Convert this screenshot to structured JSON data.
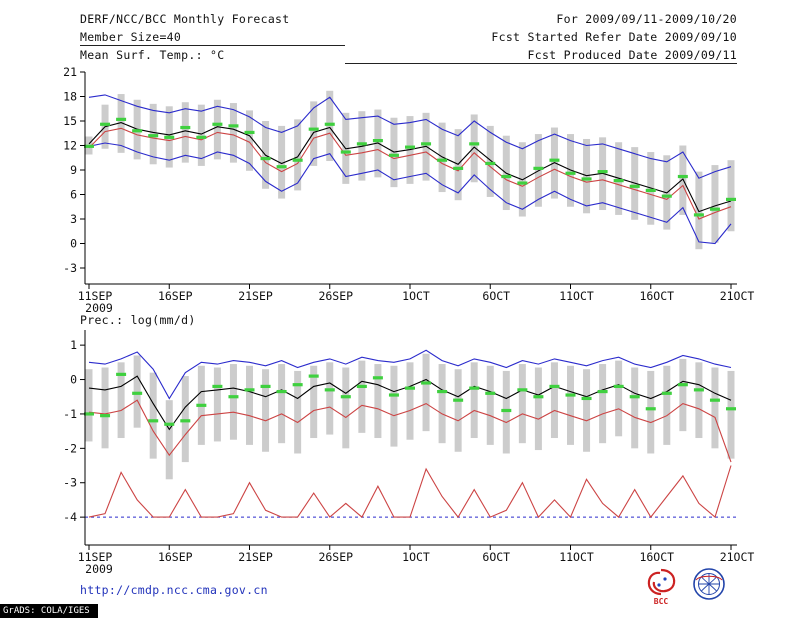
{
  "header": {
    "title": "DERF/NCC/BCC Monthly Forecast",
    "forecast_period": "For 2009/09/11-2009/10/20",
    "member_size": "Member Size=40",
    "refer_date_line": "Fcst Started Refer Date 2009/09/10",
    "produced_date_line": "Fcst Produced Date 2009/09/11"
  },
  "footer": {
    "url": "http://cmdp.ncc.cma.gov.cn",
    "grads_credit": "GrADS: COLA/IGES",
    "bcc_logo_label": "BCC"
  },
  "colors": {
    "envelope": "#2b2bcc",
    "mean": "#000000",
    "control": "#cc4444",
    "observation": "#3fd03f",
    "spread_bar": "#cccccc",
    "url": "#2233bb"
  },
  "chart_data": [
    {
      "id": "surface-temperature",
      "type": "line",
      "title": "Mean Surf. Temp.: °C",
      "ylabel": "°C",
      "ylim": [
        -3,
        21
      ],
      "yticks": [
        -3,
        0,
        3,
        6,
        9,
        12,
        15,
        18,
        21
      ],
      "n": 41,
      "xtick_labels": [
        "11SEP",
        "16SEP",
        "21SEP",
        "26SEP",
        "1OCT",
        "6OCT",
        "11OCT",
        "16OCT",
        "21OCT"
      ],
      "xtick_index": [
        0,
        5,
        10,
        15,
        20,
        25,
        30,
        35,
        40
      ],
      "x_sub_label": "2009",
      "legend_hint": "gray bars: ensemble spread; blue: max/min; black: ensemble mean; red: control; green marks: observation",
      "bars": {
        "name": "ensemble-spread",
        "color": "#cccccc",
        "lo": [
          10.9,
          11.6,
          11.1,
          10.3,
          9.7,
          9.3,
          9.9,
          9.5,
          10.3,
          9.9,
          8.9,
          6.7,
          5.5,
          6.5,
          9.5,
          10.1,
          7.3,
          7.7,
          8.1,
          6.9,
          7.3,
          7.7,
          6.3,
          5.3,
          7.5,
          5.7,
          4.1,
          3.3,
          4.5,
          5.5,
          4.5,
          3.7,
          4.1,
          3.5,
          2.9,
          2.3,
          1.7,
          3.5,
          -0.7,
          0.1,
          1.5
        ],
        "hi": [
          13.1,
          17.0,
          18.3,
          17.6,
          17.1,
          16.8,
          17.3,
          17.0,
          17.6,
          17.2,
          16.3,
          15.0,
          14.4,
          15.2,
          17.4,
          18.7,
          16.0,
          16.2,
          16.4,
          15.4,
          15.6,
          16.0,
          14.8,
          14.0,
          15.8,
          14.4,
          13.2,
          12.4,
          13.4,
          14.2,
          13.4,
          12.8,
          13.0,
          12.4,
          11.8,
          11.2,
          10.8,
          12.0,
          8.8,
          9.6,
          10.2
        ]
      },
      "series": [
        {
          "name": "ensemble-max",
          "color": "#2b2bcc",
          "values": [
            17.9,
            18.2,
            17.5,
            16.8,
            16.3,
            16.0,
            16.5,
            16.2,
            16.8,
            16.4,
            15.5,
            14.2,
            13.6,
            14.4,
            16.6,
            17.9,
            15.2,
            15.4,
            15.6,
            14.6,
            14.8,
            15.2,
            14.0,
            13.2,
            15.0,
            13.6,
            12.4,
            11.6,
            12.6,
            13.4,
            12.6,
            12.0,
            12.2,
            11.6,
            11.0,
            10.4,
            10.0,
            11.2,
            8.0,
            8.8,
            9.4
          ]
        },
        {
          "name": "ensemble-min",
          "color": "#2b2bcc",
          "values": [
            11.9,
            12.3,
            12.0,
            11.2,
            10.6,
            10.2,
            10.8,
            10.4,
            11.2,
            10.8,
            9.8,
            7.6,
            6.4,
            7.4,
            10.4,
            11.0,
            8.2,
            8.6,
            9.0,
            7.8,
            8.2,
            8.6,
            7.2,
            6.2,
            8.4,
            6.6,
            5.0,
            4.2,
            5.4,
            6.4,
            5.4,
            4.6,
            5.0,
            4.4,
            3.8,
            3.2,
            2.6,
            4.4,
            0.2,
            0.0,
            2.4
          ]
        },
        {
          "name": "ensemble-mean",
          "color": "#000000",
          "values": [
            12.2,
            14.3,
            14.8,
            14.0,
            13.6,
            13.3,
            13.8,
            13.4,
            14.3,
            14.0,
            13.2,
            10.8,
            9.8,
            10.6,
            13.6,
            14.2,
            11.6,
            11.9,
            12.3,
            11.2,
            11.5,
            11.9,
            10.6,
            9.7,
            11.8,
            10.2,
            8.6,
            7.8,
            8.9,
            9.9,
            9.0,
            8.3,
            8.6,
            8.0,
            7.4,
            6.8,
            6.2,
            7.9,
            3.9,
            4.6,
            5.2
          ]
        },
        {
          "name": "control-run",
          "color": "#cc4444",
          "values": [
            11.7,
            13.7,
            14.1,
            13.3,
            12.9,
            12.6,
            13.1,
            12.7,
            13.6,
            13.3,
            12.4,
            9.9,
            8.8,
            9.8,
            12.9,
            13.5,
            10.8,
            11.1,
            11.5,
            10.4,
            10.8,
            11.2,
            9.8,
            8.9,
            11.1,
            9.4,
            7.8,
            7.0,
            8.1,
            9.1,
            8.2,
            7.5,
            7.8,
            7.2,
            6.6,
            6.0,
            5.4,
            7.1,
            3.0,
            3.8,
            4.5
          ]
        }
      ],
      "dashes": {
        "name": "observation",
        "color": "#3fd03f",
        "values": [
          11.9,
          14.6,
          15.2,
          13.8,
          13.2,
          13.0,
          14.2,
          13.0,
          14.6,
          14.4,
          13.6,
          10.4,
          9.4,
          10.2,
          14.0,
          14.6,
          11.2,
          12.2,
          12.6,
          10.8,
          11.8,
          12.2,
          10.2,
          9.2,
          12.2,
          9.8,
          8.2,
          7.4,
          9.2,
          10.2,
          8.6,
          7.9,
          8.8,
          7.7,
          7.0,
          6.5,
          5.8,
          8.2,
          3.5,
          4.2,
          5.4
        ]
      }
    },
    {
      "id": "precipitation",
      "type": "line",
      "title": "Prec.: log(mm/d)",
      "ylabel": "log(mm/d)",
      "ylim": [
        -4,
        1
      ],
      "yticks": [
        -4,
        -3,
        -2,
        -1,
        0,
        1
      ],
      "n": 41,
      "xtick_labels": [
        "11SEP",
        "16SEP",
        "21SEP",
        "26SEP",
        "1OCT",
        "6OCT",
        "11OCT",
        "16OCT",
        "21OCT"
      ],
      "xtick_index": [
        0,
        5,
        10,
        15,
        20,
        25,
        30,
        35,
        40
      ],
      "x_sub_label": "2009",
      "refline": {
        "y": -4,
        "color": "#2b2bcc"
      },
      "bars": {
        "name": "ensemble-spread",
        "color": "#cccccc",
        "lo": [
          -1.8,
          -2.0,
          -1.7,
          -1.4,
          -2.3,
          -2.9,
          -2.4,
          -1.9,
          -1.8,
          -1.75,
          -1.9,
          -2.1,
          -1.85,
          -2.15,
          -1.7,
          -1.6,
          -2.0,
          -1.55,
          -1.7,
          -1.95,
          -1.75,
          -1.5,
          -1.85,
          -2.1,
          -1.7,
          -1.9,
          -2.15,
          -1.85,
          -2.05,
          -1.7,
          -1.9,
          -2.1,
          -1.85,
          -1.65,
          -2.0,
          -2.15,
          -1.9,
          -1.5,
          -1.7,
          -2.0,
          -2.3
        ],
        "hi": [
          0.3,
          0.35,
          0.5,
          0.7,
          0.2,
          -0.6,
          0.1,
          0.4,
          0.35,
          0.45,
          0.4,
          0.3,
          0.45,
          0.25,
          0.4,
          0.5,
          0.35,
          0.55,
          0.45,
          0.4,
          0.5,
          0.75,
          0.45,
          0.3,
          0.5,
          0.4,
          0.25,
          0.45,
          0.35,
          0.5,
          0.4,
          0.3,
          0.45,
          0.55,
          0.35,
          0.25,
          0.4,
          0.6,
          0.5,
          0.35,
          0.25
        ]
      },
      "series": [
        {
          "name": "ensemble-max",
          "color": "#2b2bcc",
          "values": [
            0.5,
            0.45,
            0.6,
            0.8,
            0.3,
            -0.55,
            0.2,
            0.5,
            0.45,
            0.55,
            0.5,
            0.4,
            0.55,
            0.35,
            0.5,
            0.6,
            0.45,
            0.65,
            0.55,
            0.5,
            0.6,
            0.85,
            0.55,
            0.4,
            0.6,
            0.5,
            0.35,
            0.55,
            0.45,
            0.6,
            0.5,
            0.4,
            0.55,
            0.65,
            0.45,
            0.35,
            0.5,
            0.7,
            0.6,
            0.45,
            0.35
          ]
        },
        {
          "name": "ensemble-mean",
          "color": "#000000",
          "values": [
            -0.25,
            -0.3,
            -0.2,
            0.1,
            -0.7,
            -1.45,
            -0.8,
            -0.35,
            -0.3,
            -0.25,
            -0.35,
            -0.5,
            -0.3,
            -0.55,
            -0.2,
            -0.1,
            -0.4,
            -0.05,
            -0.15,
            -0.35,
            -0.2,
            0.0,
            -0.3,
            -0.5,
            -0.2,
            -0.35,
            -0.55,
            -0.3,
            -0.45,
            -0.2,
            -0.35,
            -0.5,
            -0.3,
            -0.15,
            -0.4,
            -0.55,
            -0.35,
            -0.05,
            -0.15,
            -0.4,
            -0.6
          ]
        },
        {
          "name": "control-run",
          "color": "#cc4444",
          "values": [
            -0.95,
            -1.0,
            -0.9,
            -0.6,
            -1.5,
            -2.2,
            -1.6,
            -1.05,
            -1.0,
            -0.95,
            -1.05,
            -1.2,
            -1.0,
            -1.25,
            -0.9,
            -0.8,
            -1.1,
            -0.75,
            -0.85,
            -1.05,
            -0.9,
            -0.7,
            -1.0,
            -1.2,
            -0.9,
            -1.05,
            -1.25,
            -1.0,
            -1.15,
            -0.9,
            -1.05,
            -1.2,
            -1.0,
            -0.85,
            -1.1,
            -1.25,
            -1.05,
            -0.7,
            -0.85,
            -1.1,
            -2.4
          ]
        },
        {
          "name": "ensemble-min",
          "color": "#cc4444",
          "values": [
            -4.0,
            -3.9,
            -2.7,
            -3.5,
            -4.0,
            -4.0,
            -3.2,
            -4.0,
            -4.0,
            -3.9,
            -3.0,
            -3.8,
            -4.0,
            -4.0,
            -3.3,
            -4.0,
            -3.6,
            -4.0,
            -3.1,
            -4.0,
            -4.0,
            -2.6,
            -3.4,
            -4.0,
            -3.2,
            -4.0,
            -3.8,
            -3.0,
            -4.0,
            -3.5,
            -4.0,
            -2.9,
            -3.6,
            -4.0,
            -3.2,
            -4.0,
            -3.4,
            -2.8,
            -3.6,
            -4.0,
            -2.5
          ]
        }
      ],
      "dashes": {
        "name": "observation",
        "color": "#3fd03f",
        "values": [
          -1.0,
          -1.05,
          0.15,
          -0.4,
          -1.2,
          -1.3,
          -1.2,
          -0.75,
          -0.2,
          -0.5,
          -0.3,
          -0.2,
          -0.35,
          -0.15,
          0.1,
          -0.3,
          -0.5,
          -0.2,
          0.05,
          -0.45,
          -0.25,
          -0.1,
          -0.35,
          -0.6,
          -0.25,
          -0.4,
          -0.9,
          -0.3,
          -0.5,
          -0.2,
          -0.45,
          -0.55,
          -0.35,
          -0.2,
          -0.5,
          -0.85,
          -0.4,
          -0.15,
          -0.3,
          -0.6,
          -0.85
        ]
      }
    }
  ]
}
